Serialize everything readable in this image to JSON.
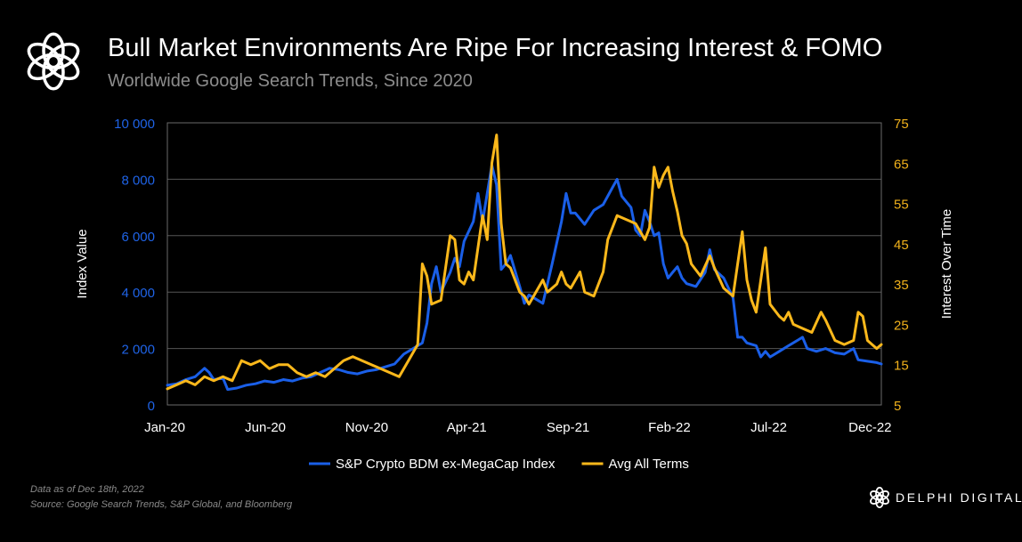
{
  "header": {
    "title": "Bull Market Environments Are Ripe For Increasing Interest & FOMO",
    "subtitle": "Worldwide Google Search Trends, Since 2020",
    "logo_icon": "delphi-knot-icon"
  },
  "footer": {
    "note_date": "Data as of Dec 18th, 2022",
    "note_source": "Source: Google Search Trends, S&P Global, and Bloomberg",
    "brand": "DELPHI DIGITAL",
    "brand_icon": "delphi-knot-icon"
  },
  "colors": {
    "background": "#000000",
    "left_axis": "#1f63e6",
    "right_axis": "#f2b21b",
    "series_index": "#1a5fe8",
    "series_terms": "#fbb81b",
    "grid": "#555555"
  },
  "chart_data": {
    "type": "line",
    "title": "",
    "xlabel": "",
    "ylabel": "Index Value",
    "y2label": "Interest Over Time",
    "ylim": [
      0,
      10000
    ],
    "y2lim": [
      5,
      75
    ],
    "yticks": [
      0,
      2000,
      4000,
      6000,
      8000,
      10000
    ],
    "ytick_labels": [
      "0",
      "2 000",
      "4 000",
      "6 000",
      "8 000",
      "10 000"
    ],
    "y2ticks": [
      5,
      15,
      25,
      35,
      45,
      55,
      65,
      75
    ],
    "y2tick_labels": [
      "5",
      "15",
      "25",
      "35",
      "45",
      "55",
      "65",
      "75"
    ],
    "xlim": [
      "2020-01-05",
      "2022-12-18"
    ],
    "xticks": [
      "2020-01-01",
      "2020-06-01",
      "2020-11-01",
      "2021-04-01",
      "2021-09-01",
      "2022-02-01",
      "2022-07-01",
      "2022-12-01"
    ],
    "xtick_labels": [
      "Jan-20",
      "Jun-20",
      "Nov-20",
      "Apr-21",
      "Sep-21",
      "Feb-22",
      "Jul-22",
      "Dec-22"
    ],
    "grid": true,
    "legend_position": "bottom",
    "series": [
      {
        "name": "S&P Crypto BDM ex-MegaCap Index",
        "axis": "left",
        "points": [
          [
            "2020-01-05",
            700
          ],
          [
            "2020-01-19",
            750
          ],
          [
            "2020-02-02",
            900
          ],
          [
            "2020-02-16",
            1000
          ],
          [
            "2020-03-01",
            1300
          ],
          [
            "2020-03-08",
            1150
          ],
          [
            "2020-03-15",
            900
          ],
          [
            "2020-03-29",
            950
          ],
          [
            "2020-04-05",
            550
          ],
          [
            "2020-04-19",
            600
          ],
          [
            "2020-05-03",
            700
          ],
          [
            "2020-05-17",
            750
          ],
          [
            "2020-05-31",
            850
          ],
          [
            "2020-06-14",
            800
          ],
          [
            "2020-06-28",
            900
          ],
          [
            "2020-07-12",
            850
          ],
          [
            "2020-07-26",
            950
          ],
          [
            "2020-08-09",
            1000
          ],
          [
            "2020-08-23",
            1150
          ],
          [
            "2020-09-06",
            1300
          ],
          [
            "2020-09-20",
            1250
          ],
          [
            "2020-10-04",
            1150
          ],
          [
            "2020-10-18",
            1100
          ],
          [
            "2020-11-01",
            1200
          ],
          [
            "2020-11-15",
            1250
          ],
          [
            "2020-11-29",
            1350
          ],
          [
            "2020-12-13",
            1450
          ],
          [
            "2020-12-27",
            1800
          ],
          [
            "2021-01-10",
            2000
          ],
          [
            "2021-01-24",
            2200
          ],
          [
            "2021-01-31",
            2900
          ],
          [
            "2021-02-07",
            4300
          ],
          [
            "2021-02-14",
            4900
          ],
          [
            "2021-02-21",
            4000
          ],
          [
            "2021-03-07",
            4700
          ],
          [
            "2021-03-14",
            5200
          ],
          [
            "2021-03-21",
            4900
          ],
          [
            "2021-03-28",
            5800
          ],
          [
            "2021-04-11",
            6500
          ],
          [
            "2021-04-18",
            7500
          ],
          [
            "2021-04-25",
            6500
          ],
          [
            "2021-05-02",
            7500
          ],
          [
            "2021-05-09",
            8500
          ],
          [
            "2021-05-16",
            7800
          ],
          [
            "2021-05-23",
            4800
          ],
          [
            "2021-05-30",
            5000
          ],
          [
            "2021-06-06",
            5300
          ],
          [
            "2021-06-20",
            4200
          ],
          [
            "2021-06-27",
            3600
          ],
          [
            "2021-07-04",
            3900
          ],
          [
            "2021-07-18",
            3700
          ],
          [
            "2021-07-25",
            3600
          ],
          [
            "2021-08-08",
            5000
          ],
          [
            "2021-08-22",
            6500
          ],
          [
            "2021-08-29",
            7500
          ],
          [
            "2021-09-05",
            6800
          ],
          [
            "2021-09-12",
            6800
          ],
          [
            "2021-09-26",
            6400
          ],
          [
            "2021-10-10",
            6900
          ],
          [
            "2021-10-24",
            7100
          ],
          [
            "2021-11-07",
            7700
          ],
          [
            "2021-11-14",
            8000
          ],
          [
            "2021-11-21",
            7400
          ],
          [
            "2021-11-28",
            7200
          ],
          [
            "2021-12-05",
            7000
          ],
          [
            "2021-12-12",
            6200
          ],
          [
            "2021-12-19",
            6000
          ],
          [
            "2021-12-26",
            6900
          ],
          [
            "2022-01-02",
            6500
          ],
          [
            "2022-01-09",
            6000
          ],
          [
            "2022-01-16",
            6100
          ],
          [
            "2022-01-23",
            5000
          ],
          [
            "2022-01-30",
            4500
          ],
          [
            "2022-02-06",
            4700
          ],
          [
            "2022-02-13",
            4900
          ],
          [
            "2022-02-20",
            4500
          ],
          [
            "2022-02-27",
            4300
          ],
          [
            "2022-03-13",
            4200
          ],
          [
            "2022-03-27",
            4700
          ],
          [
            "2022-04-03",
            5500
          ],
          [
            "2022-04-10",
            4800
          ],
          [
            "2022-04-24",
            4500
          ],
          [
            "2022-05-08",
            3800
          ],
          [
            "2022-05-15",
            2400
          ],
          [
            "2022-05-22",
            2400
          ],
          [
            "2022-05-29",
            2200
          ],
          [
            "2022-06-12",
            2100
          ],
          [
            "2022-06-19",
            1700
          ],
          [
            "2022-06-26",
            1900
          ],
          [
            "2022-07-03",
            1700
          ],
          [
            "2022-07-17",
            1900
          ],
          [
            "2022-07-31",
            2100
          ],
          [
            "2022-08-14",
            2300
          ],
          [
            "2022-08-21",
            2400
          ],
          [
            "2022-08-28",
            2000
          ],
          [
            "2022-09-11",
            1900
          ],
          [
            "2022-09-25",
            2000
          ],
          [
            "2022-10-09",
            1850
          ],
          [
            "2022-10-23",
            1800
          ],
          [
            "2022-11-06",
            2000
          ],
          [
            "2022-11-13",
            1600
          ],
          [
            "2022-11-27",
            1550
          ],
          [
            "2022-12-11",
            1500
          ],
          [
            "2022-12-18",
            1450
          ]
        ]
      },
      {
        "name": "Avg All Terms",
        "axis": "right",
        "points": [
          [
            "2020-01-05",
            9
          ],
          [
            "2020-01-19",
            10
          ],
          [
            "2020-02-02",
            11
          ],
          [
            "2020-02-16",
            10
          ],
          [
            "2020-03-01",
            12
          ],
          [
            "2020-03-15",
            11
          ],
          [
            "2020-03-29",
            12
          ],
          [
            "2020-04-12",
            11
          ],
          [
            "2020-04-26",
            16
          ],
          [
            "2020-05-10",
            15
          ],
          [
            "2020-05-24",
            16
          ],
          [
            "2020-06-07",
            14
          ],
          [
            "2020-06-21",
            15
          ],
          [
            "2020-07-05",
            15
          ],
          [
            "2020-07-19",
            13
          ],
          [
            "2020-08-02",
            12
          ],
          [
            "2020-08-16",
            13
          ],
          [
            "2020-08-30",
            12
          ],
          [
            "2020-09-13",
            14
          ],
          [
            "2020-09-27",
            16
          ],
          [
            "2020-10-11",
            17
          ],
          [
            "2020-10-25",
            16
          ],
          [
            "2020-11-08",
            15
          ],
          [
            "2020-11-22",
            14
          ],
          [
            "2020-12-06",
            13
          ],
          [
            "2020-12-20",
            12
          ],
          [
            "2021-01-03",
            16
          ],
          [
            "2021-01-17",
            20
          ],
          [
            "2021-01-24",
            40
          ],
          [
            "2021-01-31",
            37
          ],
          [
            "2021-02-07",
            30
          ],
          [
            "2021-02-21",
            31
          ],
          [
            "2021-03-07",
            47
          ],
          [
            "2021-03-14",
            46
          ],
          [
            "2021-03-21",
            36
          ],
          [
            "2021-03-28",
            35
          ],
          [
            "2021-04-04",
            38
          ],
          [
            "2021-04-11",
            36
          ],
          [
            "2021-04-25",
            52
          ],
          [
            "2021-05-02",
            46
          ],
          [
            "2021-05-09",
            65
          ],
          [
            "2021-05-16",
            72
          ],
          [
            "2021-05-23",
            50
          ],
          [
            "2021-05-30",
            40
          ],
          [
            "2021-06-06",
            39
          ],
          [
            "2021-06-20",
            33
          ],
          [
            "2021-06-27",
            32
          ],
          [
            "2021-07-04",
            30
          ],
          [
            "2021-07-11",
            32
          ],
          [
            "2021-07-25",
            36
          ],
          [
            "2021-08-01",
            33
          ],
          [
            "2021-08-15",
            35
          ],
          [
            "2021-08-22",
            38
          ],
          [
            "2021-08-29",
            35
          ],
          [
            "2021-09-05",
            34
          ],
          [
            "2021-09-19",
            38
          ],
          [
            "2021-09-26",
            33
          ],
          [
            "2021-10-10",
            32
          ],
          [
            "2021-10-17",
            35
          ],
          [
            "2021-10-24",
            38
          ],
          [
            "2021-10-31",
            46
          ],
          [
            "2021-11-14",
            52
          ],
          [
            "2021-11-28",
            51
          ],
          [
            "2021-12-12",
            50
          ],
          [
            "2021-12-19",
            48
          ],
          [
            "2021-12-26",
            46
          ],
          [
            "2022-01-02",
            49
          ],
          [
            "2022-01-09",
            64
          ],
          [
            "2022-01-16",
            59
          ],
          [
            "2022-01-23",
            62
          ],
          [
            "2022-01-30",
            64
          ],
          [
            "2022-02-06",
            58
          ],
          [
            "2022-02-13",
            53
          ],
          [
            "2022-02-20",
            47
          ],
          [
            "2022-02-27",
            45
          ],
          [
            "2022-03-06",
            40
          ],
          [
            "2022-03-20",
            37
          ],
          [
            "2022-04-03",
            42
          ],
          [
            "2022-04-10",
            39
          ],
          [
            "2022-04-24",
            34
          ],
          [
            "2022-05-01",
            33
          ],
          [
            "2022-05-08",
            32
          ],
          [
            "2022-05-22",
            48
          ],
          [
            "2022-05-29",
            36
          ],
          [
            "2022-06-05",
            31
          ],
          [
            "2022-06-12",
            28
          ],
          [
            "2022-06-26",
            44
          ],
          [
            "2022-07-03",
            30
          ],
          [
            "2022-07-17",
            27
          ],
          [
            "2022-07-24",
            26
          ],
          [
            "2022-07-31",
            28
          ],
          [
            "2022-08-07",
            25
          ],
          [
            "2022-08-21",
            24
          ],
          [
            "2022-09-04",
            23
          ],
          [
            "2022-09-18",
            28
          ],
          [
            "2022-09-25",
            26
          ],
          [
            "2022-10-09",
            21
          ],
          [
            "2022-10-23",
            20
          ],
          [
            "2022-11-06",
            21
          ],
          [
            "2022-11-13",
            28
          ],
          [
            "2022-11-20",
            27
          ],
          [
            "2022-11-27",
            21
          ],
          [
            "2022-12-04",
            20
          ],
          [
            "2022-12-11",
            19
          ],
          [
            "2022-12-18",
            20
          ]
        ]
      }
    ]
  }
}
